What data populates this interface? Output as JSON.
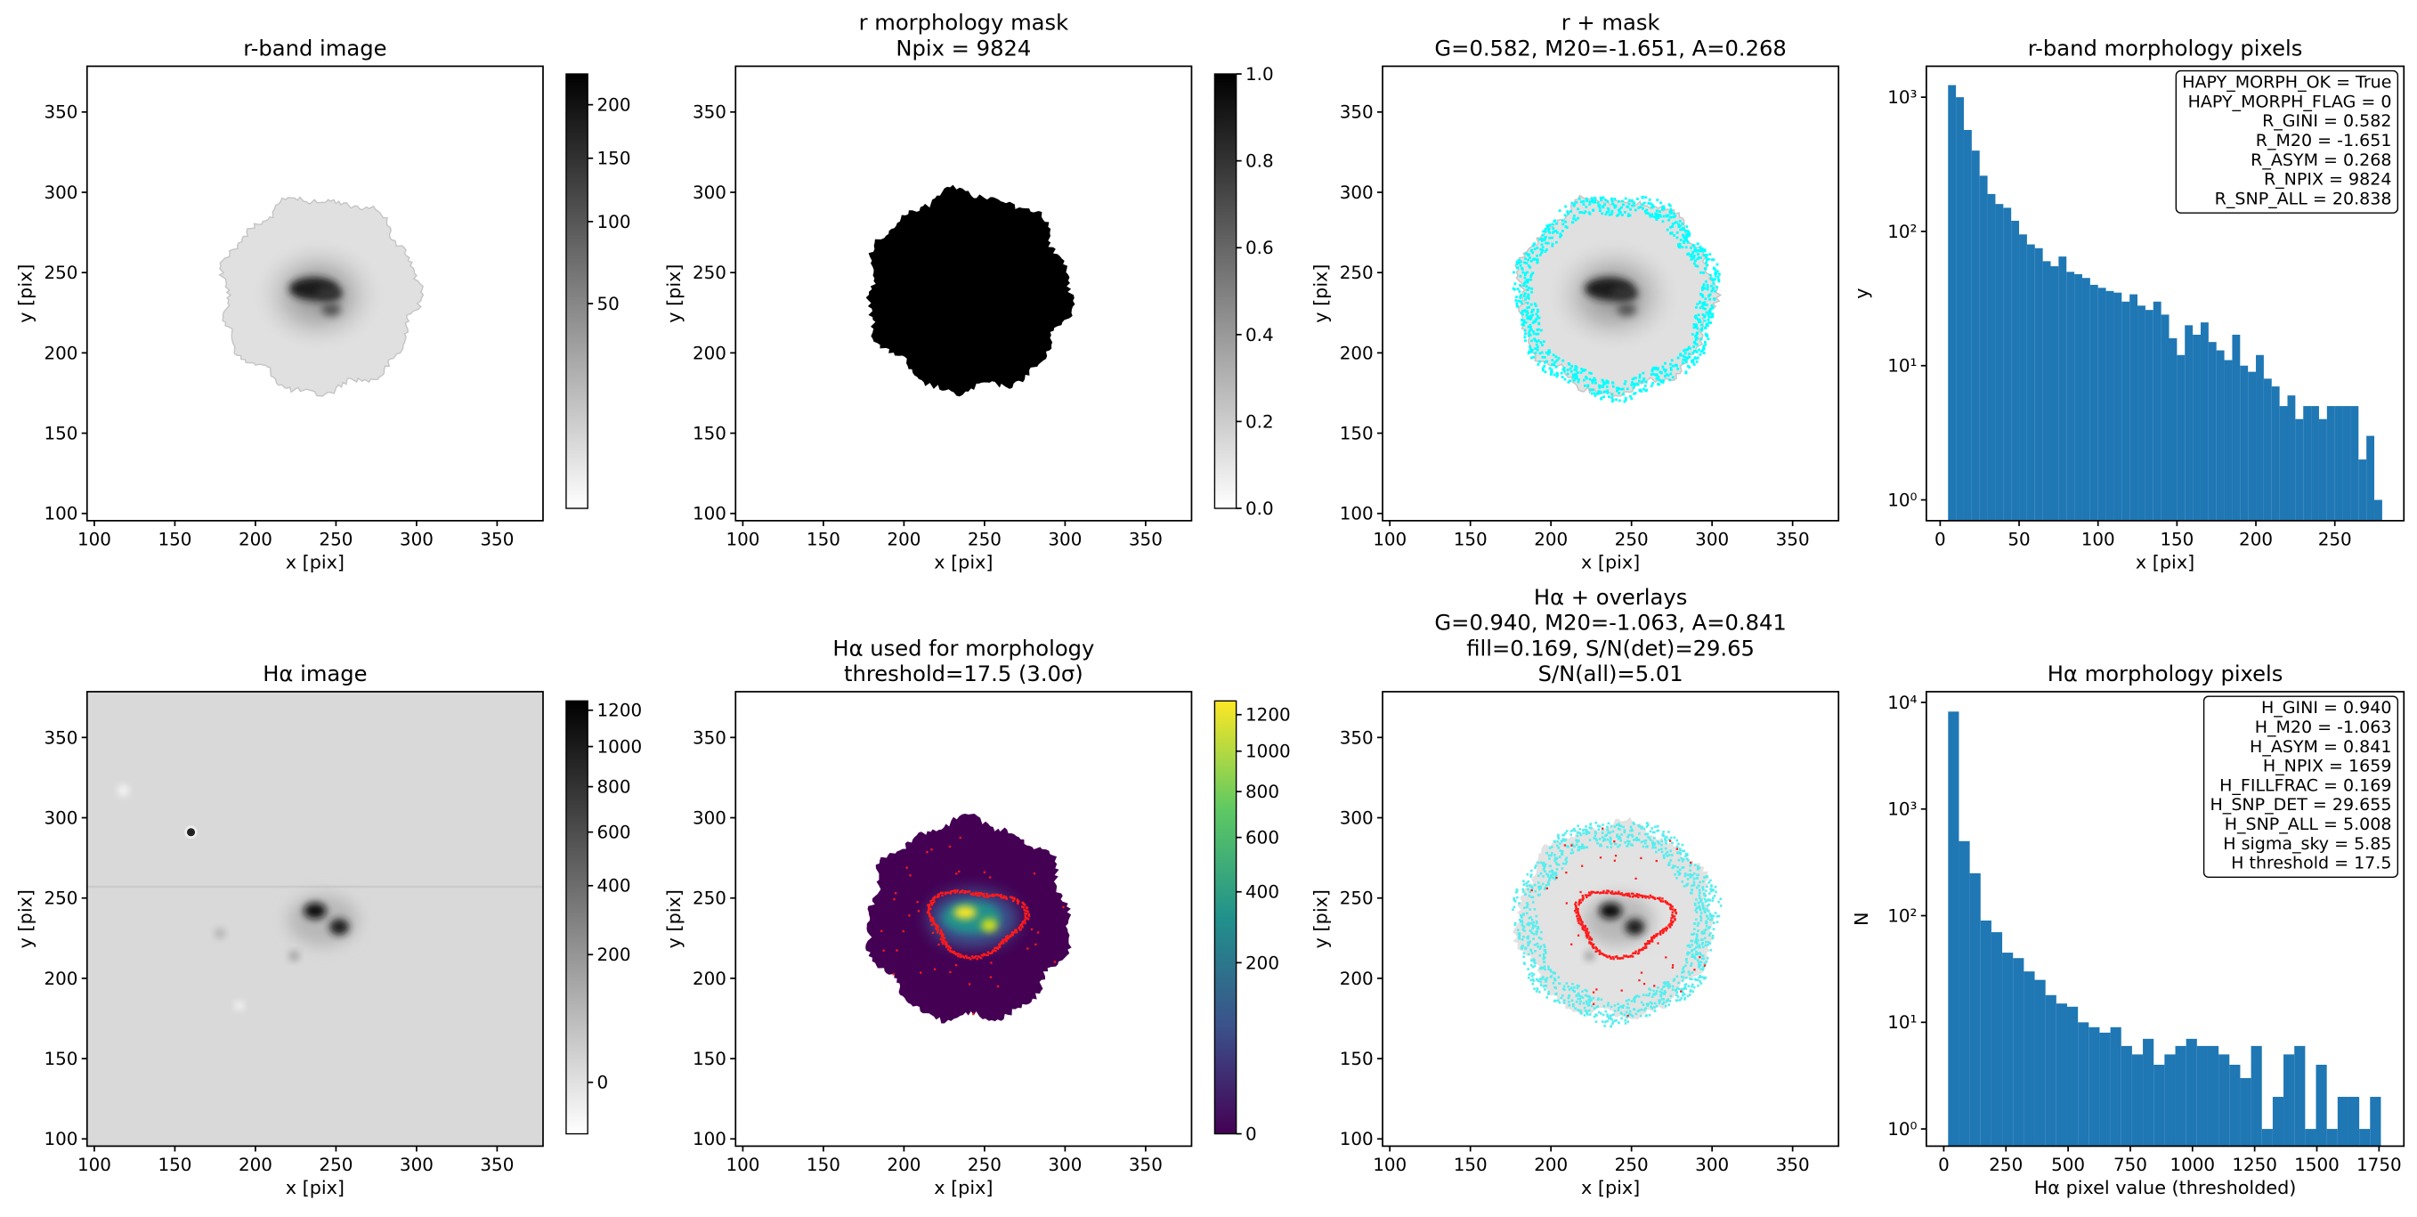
{
  "chart_data": [
    {
      "type": "image",
      "title": "r-band image",
      "xlabel": "x [pix]",
      "ylabel": "y [pix]",
      "xlim": [
        95.5,
        378.5
      ],
      "ylim": [
        95.5,
        378.5
      ],
      "xticks": [
        100,
        150,
        200,
        250,
        300,
        350
      ],
      "yticks": [
        100,
        150,
        200,
        250,
        300,
        350
      ],
      "colorbar": {
        "cmap": "gray_r",
        "norm": "sqrt",
        "clim": [
          -2,
          232
        ],
        "ticks": [
          50,
          100,
          150,
          200
        ]
      }
    },
    {
      "type": "image",
      "title": [
        "r morphology mask",
        "Npix = 9824"
      ],
      "xlabel": "x [pix]",
      "ylabel": "y [pix]",
      "xlim": [
        95.5,
        378.5
      ],
      "ylim": [
        95.5,
        378.5
      ],
      "xticks": [
        100,
        150,
        200,
        250,
        300,
        350
      ],
      "yticks": [
        100,
        150,
        200,
        250,
        300,
        350
      ],
      "colorbar": {
        "cmap": "gray_r",
        "norm": "linear",
        "clim": [
          0,
          1
        ],
        "ticks": [
          {
            "value": 0,
            "label": "0.0"
          },
          {
            "value": 0.2,
            "label": "0.2"
          },
          {
            "value": 0.4,
            "label": "0.4"
          },
          {
            "value": 0.6,
            "label": "0.6"
          },
          {
            "value": 0.8,
            "label": "0.8"
          },
          {
            "value": 1,
            "label": "1.0"
          }
        ]
      }
    },
    {
      "type": "image",
      "title": [
        "r + mask",
        "G=0.582, M20=-1.651, A=0.268"
      ],
      "xlabel": "x [pix]",
      "ylabel": "y [pix]",
      "xlim": [
        95.5,
        378.5
      ],
      "ylim": [
        95.5,
        378.5
      ],
      "xticks": [
        100,
        150,
        200,
        250,
        300,
        350
      ],
      "yticks": [
        100,
        150,
        200,
        250,
        300,
        350
      ]
    },
    {
      "type": "histogram",
      "title": "r-band morphology pixels",
      "xlabel": "x [pix]",
      "ylabel": "y",
      "color": "#1f77b4",
      "log_y": true,
      "xlim": [
        -8.75,
        293.75
      ],
      "ylim": [
        0.7,
        1700
      ],
      "xticks": [
        0,
        50,
        100,
        150,
        200,
        250
      ],
      "yticks": [
        {
          "value": 1,
          "label": "10⁰"
        },
        {
          "value": 10,
          "label": "10¹"
        },
        {
          "value": 100,
          "label": "10²"
        },
        {
          "value": 1000,
          "label": "10³"
        }
      ],
      "bins": [
        5,
        10,
        15,
        20,
        25,
        30,
        35,
        40,
        45,
        50,
        55,
        60,
        65,
        70,
        75,
        80,
        85,
        90,
        95,
        100,
        105,
        110,
        115,
        120,
        125,
        130,
        135,
        140,
        145,
        150,
        155,
        160,
        165,
        170,
        175,
        180,
        185,
        190,
        195,
        200,
        205,
        210,
        215,
        220,
        225,
        230,
        235,
        240,
        245,
        250,
        255,
        260,
        265,
        270,
        275,
        280
      ],
      "counts": [
        1230,
        1000,
        570,
        400,
        260,
        190,
        160,
        150,
        120,
        95,
        80,
        75,
        60,
        55,
        65,
        50,
        48,
        45,
        40,
        38,
        36,
        35,
        30,
        34,
        28,
        26,
        30,
        24,
        16,
        12,
        20,
        17,
        21,
        15,
        13,
        11,
        17,
        10,
        9,
        12,
        8,
        7,
        5,
        6,
        4,
        5,
        5,
        4,
        5,
        5,
        5,
        5,
        2,
        3,
        1
      ],
      "annotation_loc": "upper right",
      "annotation": [
        "HAPY_MORPH_OK = True",
        "HAPY_MORPH_FLAG = 0",
        "R_GINI = 0.582",
        "R_M20 = -1.651",
        "R_ASYM = 0.268",
        "R_NPIX = 9824",
        "R_SNP_ALL = 20.838"
      ]
    },
    {
      "type": "image",
      "title": "Hα image",
      "xlabel": "x [pix]",
      "ylabel": "y [pix]",
      "xlim": [
        95.5,
        378.5
      ],
      "ylim": [
        95.5,
        378.5
      ],
      "xticks": [
        100,
        150,
        200,
        250,
        300,
        350
      ],
      "yticks": [
        100,
        150,
        200,
        250,
        300,
        350
      ],
      "colorbar": {
        "cmap": "gray_r",
        "norm": "sqrt",
        "clim": [
          -18,
          1254
        ],
        "ticks": [
          0,
          200,
          400,
          600,
          800,
          1000,
          1200
        ]
      }
    },
    {
      "type": "image",
      "title": [
        "Hα used for morphology",
        "threshold=17.5 (3.0σ)"
      ],
      "xlabel": "x [pix]",
      "ylabel": "y [pix]",
      "xlim": [
        95.5,
        378.5
      ],
      "ylim": [
        95.5,
        378.5
      ],
      "xticks": [
        100,
        150,
        200,
        250,
        300,
        350
      ],
      "yticks": [
        100,
        150,
        200,
        250,
        300,
        350
      ],
      "colorbar": {
        "cmap": "viridis",
        "norm": "sqrt",
        "clim": [
          0,
          1280
        ],
        "ticks": [
          0,
          200,
          400,
          600,
          800,
          1000,
          1200
        ]
      }
    },
    {
      "type": "image",
      "title": [
        "Hα + overlays",
        "G=0.940, M20=-1.063, A=0.841",
        "fill=0.169, S/N(det)=29.65",
        "S/N(all)=5.01"
      ],
      "xlabel": "x [pix]",
      "ylabel": "y [pix]",
      "xlim": [
        95.5,
        378.5
      ],
      "ylim": [
        95.5,
        378.5
      ],
      "xticks": [
        100,
        150,
        200,
        250,
        300,
        350
      ],
      "yticks": [
        100,
        150,
        200,
        250,
        300,
        350
      ]
    },
    {
      "type": "histogram",
      "title": "Hα morphology pixels",
      "xlabel": "Hα pixel value (thresholded)",
      "ylabel": "N",
      "color": "#1f77b4",
      "log_y": true,
      "xlim": [
        -70,
        1850
      ],
      "ylim": [
        0.69,
        12600
      ],
      "xticks": [
        0,
        250,
        500,
        750,
        1000,
        1250,
        1500,
        1750
      ],
      "yticks": [
        {
          "value": 1,
          "label": "10⁰"
        },
        {
          "value": 10,
          "label": "10¹"
        },
        {
          "value": 100,
          "label": "10²"
        },
        {
          "value": 1000,
          "label": "10³"
        },
        {
          "value": 10000,
          "label": "10⁴"
        }
      ],
      "bins": [
        17.5,
        61,
        104.5,
        148,
        191.5,
        235,
        278.5,
        322,
        365.5,
        409,
        452.5,
        496,
        539.5,
        583,
        626.5,
        670,
        713.5,
        757,
        800.5,
        844,
        887.5,
        931,
        974.5,
        1018,
        1061.5,
        1105,
        1148.5,
        1192,
        1235.5,
        1279,
        1322.5,
        1366,
        1409.5,
        1453,
        1496.5,
        1540,
        1583.5,
        1627,
        1670.5,
        1714,
        1757.5
      ],
      "counts": [
        8200,
        500,
        250,
        90,
        70,
        45,
        40,
        30,
        25,
        18,
        15,
        14,
        10,
        9,
        8,
        9,
        6,
        5,
        7,
        4,
        5,
        6,
        7,
        6,
        6,
        5,
        4,
        3,
        6,
        1,
        2,
        5,
        6,
        1,
        4,
        1,
        2,
        2,
        1,
        2
      ],
      "annotation_loc": "upper right",
      "annotation": [
        "H_GINI = 0.940",
        "H_M20 = -1.063",
        "H_ASYM = 0.841",
        "H_NPIX = 1659",
        "H_FILLFRAC = 0.169",
        "H_SNP_DET = 29.655",
        "H_SNP_ALL = 5.008",
        "H sigma_sky = 5.85",
        "H threshold = 17.5"
      ]
    }
  ]
}
